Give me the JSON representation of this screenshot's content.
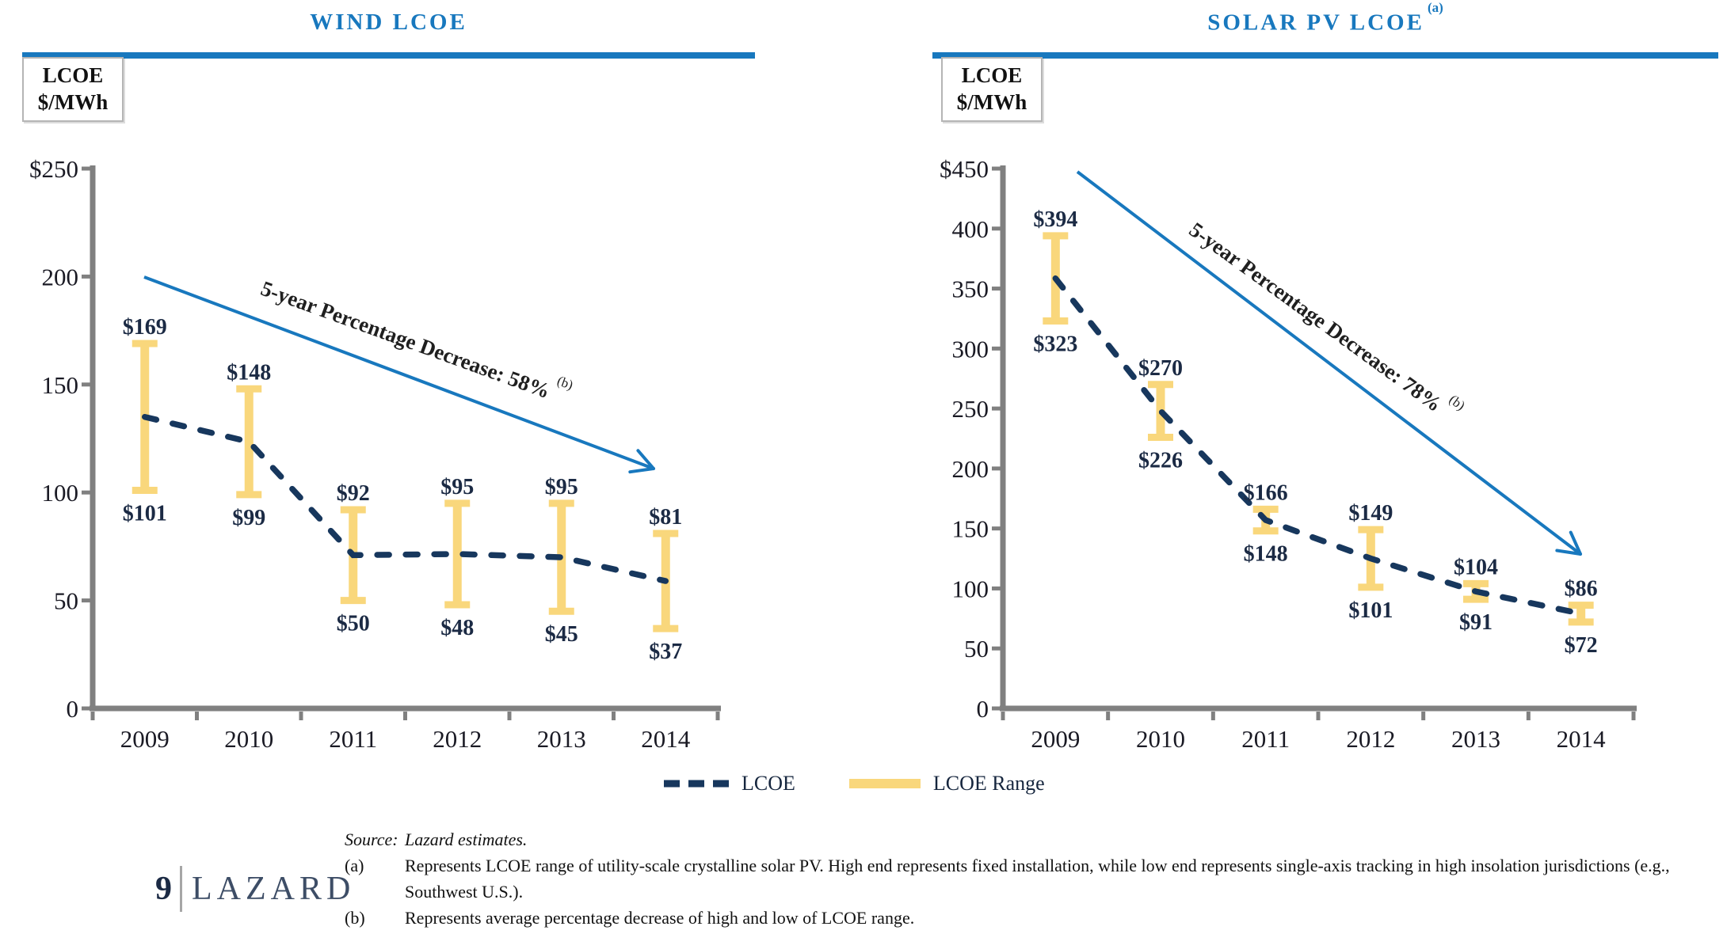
{
  "page_titles": {
    "wind": "WIND LCOE",
    "solar": "SOLAR PV LCOE",
    "solar_sup": "(a)"
  },
  "axis_box": {
    "line1": "LCOE",
    "line2": "$/MWh"
  },
  "chart_data": [
    {
      "type": "line",
      "title": "WIND LCOE",
      "categories": [
        "2009",
        "2010",
        "2011",
        "2012",
        "2013",
        "2014"
      ],
      "series": [
        {
          "name": "LCOE",
          "values": [
            135,
            123.5,
            71,
            71.5,
            70,
            59
          ]
        },
        {
          "name": "LCOE Range high",
          "values": [
            169,
            148,
            92,
            95,
            95,
            81
          ]
        },
        {
          "name": "LCOE Range low",
          "values": [
            101,
            99,
            50,
            48,
            45,
            37
          ]
        }
      ],
      "value_labels_high": [
        "$169",
        "$148",
        "$92",
        "$95",
        "$95",
        "$81"
      ],
      "value_labels_low": [
        "$101",
        "$99",
        "$50",
        "$48",
        "$45",
        "$37"
      ],
      "ylabel": "LCOE $/MWh",
      "ylim": [
        0,
        250
      ],
      "ytick_labels": [
        "0",
        "50",
        "100",
        "150",
        "200",
        "$250"
      ],
      "grid": false,
      "annotation": "5-year Percentage Decrease: 58%",
      "annotation_sup": "(b)"
    },
    {
      "type": "line",
      "title": "SOLAR PV LCOE",
      "categories": [
        "2009",
        "2010",
        "2011",
        "2012",
        "2013",
        "2014"
      ],
      "series": [
        {
          "name": "LCOE",
          "values": [
            358.5,
            248,
            157,
            125,
            97.5,
            79
          ]
        },
        {
          "name": "LCOE Range high",
          "values": [
            394,
            270,
            166,
            149,
            104,
            86
          ]
        },
        {
          "name": "LCOE Range low",
          "values": [
            323,
            226,
            148,
            101,
            91,
            72
          ]
        }
      ],
      "value_labels_high": [
        "$394",
        "$270",
        "$166",
        "$149",
        "$104",
        "$86"
      ],
      "value_labels_low": [
        "$323",
        "$226",
        "$148",
        "$101",
        "$91",
        "$72"
      ],
      "ylabel": "LCOE $/MWh",
      "ylim": [
        0,
        450
      ],
      "ytick_labels": [
        "0",
        "50",
        "100",
        "150",
        "200",
        "250",
        "300",
        "350",
        "400",
        "$450"
      ],
      "grid": false,
      "annotation": "5-year Percentage Decrease: 78%",
      "annotation_sup": "(b)"
    }
  ],
  "legend": {
    "items": [
      {
        "label": "LCOE",
        "swatch": "dashed-line"
      },
      {
        "label": "LCOE Range",
        "swatch": "gold-bar"
      }
    ]
  },
  "footnotes": {
    "source_label": "Source:",
    "source_text": "Lazard estimates.",
    "a_label": "(a)",
    "a_lines": [
      "Represents LCOE range of utility-scale crystalline solar PV. High end represents fixed installation, while low end represents single-axis tracking in high insolation jurisdictions (e.g.,",
      "Southwest U.S.)."
    ],
    "b_label": "(b)",
    "b_text": "Represents average percentage decrease of high and low of LCOE range."
  },
  "footer_logo": {
    "page_number": "9",
    "brand": "LAZARD"
  },
  "colors": {
    "accent_blue": "#1878BE",
    "gold": "#F9D77C",
    "navy_line": "#17375D",
    "label_navy": "#1B2A44",
    "tick_text": "#1a1a24",
    "axis_gray": "#808080"
  }
}
